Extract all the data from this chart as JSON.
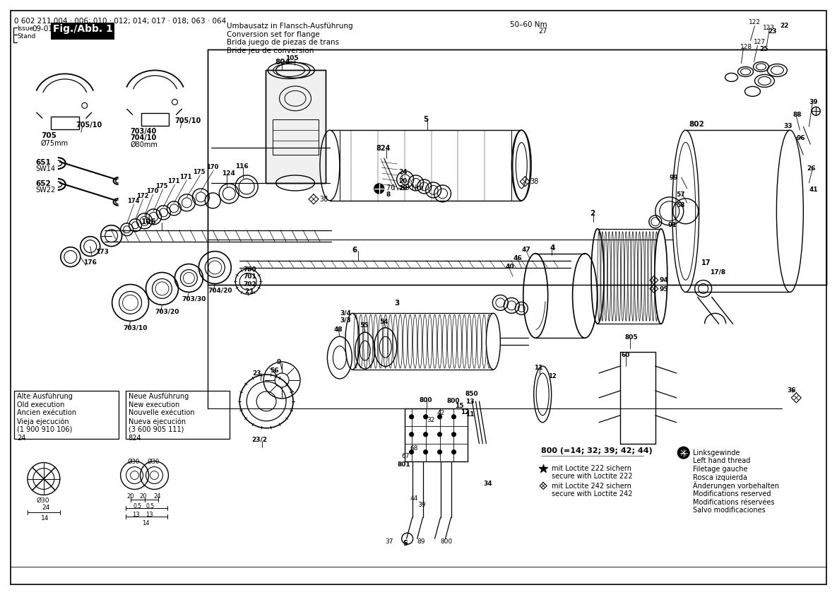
{
  "title_line1": "0 602 211 004 · 006; 010 · 012; 014; 017 · 018; 063 · 064",
  "issue_date": "09-01-09",
  "fig_label": "Fig./Abb. 1",
  "conversion_text": "Umbausatz in Flansch-Ausführung\nConversion set for flange\nBrida juego de piezas de trans\nBride jeu de conversion",
  "torque_text": "50–60 Nm",
  "part_800_note": "800 (=14; 32; 39; 42; 44)",
  "old_exec_title": "Alte Ausführung\nOld execution\nAncien exécution\nVieja ejecución",
  "old_exec_part": "(1 900 910 106)\n24",
  "new_exec_title": "Neue Ausführung\nNew execution\nNouvelle exécution\nNueva ejecución",
  "new_exec_part": "(3 600 905 111)\n824",
  "legend_changes": "Änderungen vorbehalten\nModifications reserved\nModifications réservées\nSalvo modificaciones",
  "bg_color": "#ffffff",
  "line_color": "#000000",
  "text_color": "#000000"
}
